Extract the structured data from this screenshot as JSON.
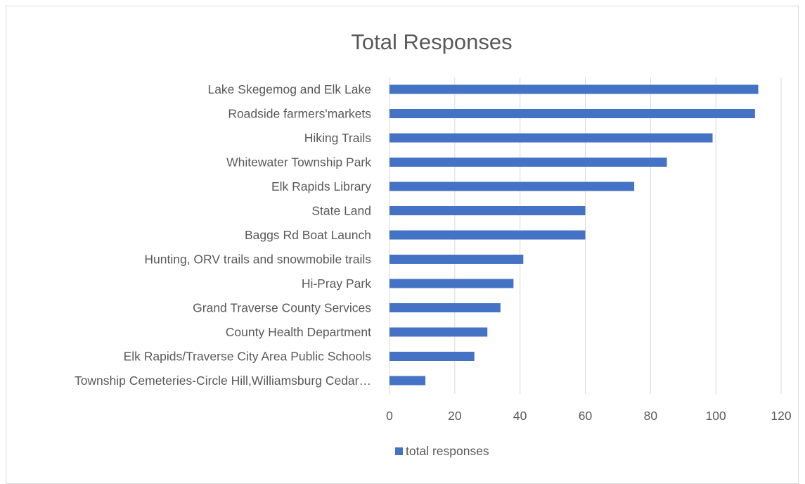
{
  "chart_data": {
    "type": "bar",
    "orientation": "horizontal",
    "title": "Total Responses",
    "xlabel": "",
    "ylabel": "",
    "categories": [
      "Lake Skegemog and Elk Lake",
      "Roadside farmers'markets",
      "Hiking Trails",
      "Whitewater Township Park",
      "Elk Rapids Library",
      "State Land",
      "Baggs Rd Boat Launch",
      "Hunting, ORV trails and snowmobile trails",
      "Hi-Pray Park",
      "Grand Traverse County Services",
      "County Health Department",
      "Elk Rapids/Traverse City Area Public Schools",
      "Township Cemeteries-Circle Hill,Williamsburg Cedar…"
    ],
    "series": [
      {
        "name": "total responses",
        "color": "#4472c4",
        "values": [
          113,
          112,
          99,
          85,
          75,
          60,
          60,
          41,
          38,
          34,
          30,
          26,
          11
        ]
      }
    ],
    "xlim": [
      0,
      120
    ],
    "xticks": [
      0,
      20,
      40,
      60,
      80,
      100,
      120
    ],
    "grid": true,
    "legend_position": "bottom"
  }
}
